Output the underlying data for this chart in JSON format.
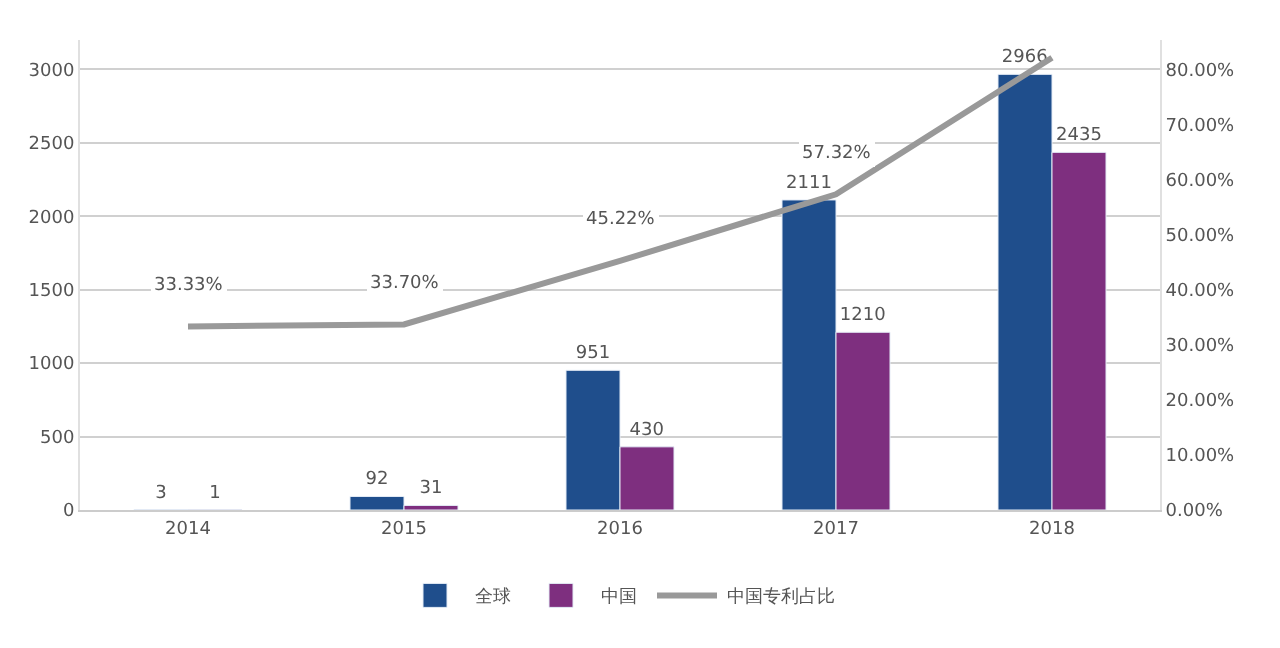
{
  "chart_data": {
    "type": "bar",
    "categories": [
      "2014",
      "2015",
      "2016",
      "2017",
      "2018"
    ],
    "series": [
      {
        "name": "全球",
        "color": "#1f4e8c",
        "values": [
          3,
          92,
          951,
          2111,
          2966
        ],
        "value_labels": [
          "3",
          "92",
          "951",
          "2111",
          "2966"
        ]
      },
      {
        "name": "中国",
        "color": "#7e2f7f",
        "values": [
          1,
          31,
          430,
          1210,
          2435
        ],
        "value_labels": [
          "1",
          "31",
          "430",
          "1210",
          "2435"
        ]
      },
      {
        "name": "中国专利占比",
        "type": "line",
        "axis": "y2",
        "color": "#999999",
        "values": [
          33.33,
          33.7,
          45.22,
          57.32,
          82.1
        ],
        "value_labels": [
          "33.33%",
          "33.70%",
          "45.22%",
          "57.32%",
          null
        ]
      }
    ],
    "ylim": [
      0,
      3200
    ],
    "yticks": [
      0,
      500,
      1000,
      1500,
      2000,
      2500,
      3000
    ],
    "y2lim": [
      0,
      85.33
    ],
    "y2ticks": [
      {
        "value": 0,
        "label": "0.00%"
      },
      {
        "value": 10,
        "label": "10.00%"
      },
      {
        "value": 20,
        "label": "20.00%"
      },
      {
        "value": 30,
        "label": "30.00%"
      },
      {
        "value": 40,
        "label": "40.00%"
      },
      {
        "value": 50,
        "label": "50.00%"
      },
      {
        "value": 60,
        "label": "60.00%"
      },
      {
        "value": 70,
        "label": "70.00%"
      },
      {
        "value": 80,
        "label": "80.00%"
      }
    ],
    "grid": "y",
    "legend": "bottom",
    "marker": "none"
  }
}
